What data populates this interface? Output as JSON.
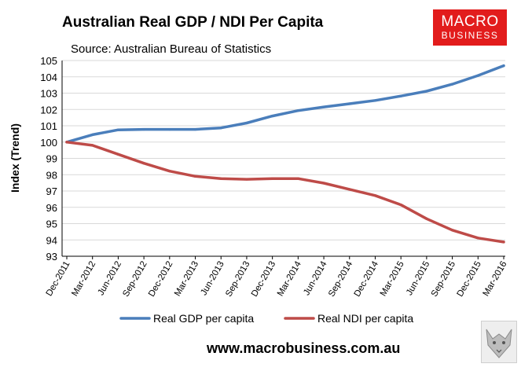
{
  "header": {
    "title": "Australian Real GDP / NDI Per Capita",
    "source": "Source: Australian Bureau of Statistics"
  },
  "logo": {
    "line1": "MACRO",
    "line2": "BUSINESS",
    "bg_color": "#e21c1c"
  },
  "footer": {
    "url": "www.macrobusiness.com.au",
    "icon": "wolf-logo-icon"
  },
  "chart_data": {
    "type": "line",
    "title": "Australian Real GDP / NDI Per Capita",
    "subtitle": "Source: Australian Bureau of Statistics",
    "xlabel": "",
    "ylabel": "Index (Trend)",
    "ylim": [
      93,
      105
    ],
    "yticks": [
      93,
      94,
      95,
      96,
      97,
      98,
      99,
      100,
      101,
      102,
      103,
      104,
      105
    ],
    "grid": true,
    "legend": "bottom",
    "categories": [
      "Dec-2011",
      "Mar-2012",
      "Jun-2012",
      "Sep-2012",
      "Dec-2012",
      "Mar-2013",
      "Jun-2013",
      "Sep-2013",
      "Dec-2013",
      "Mar-2014",
      "Jun-2014",
      "Sep-2014",
      "Dec-2014",
      "Mar-2015",
      "Jun-2015",
      "Sep-2015",
      "Dec-2015",
      "Mar-2016"
    ],
    "series": [
      {
        "name": "Real GDP per capita",
        "color": "#4a7ebb",
        "values": [
          100.0,
          100.45,
          100.75,
          100.78,
          100.78,
          100.78,
          100.87,
          101.17,
          101.6,
          101.93,
          102.15,
          102.35,
          102.55,
          102.82,
          103.12,
          103.55,
          104.08,
          104.68
        ]
      },
      {
        "name": "Real NDI per capita",
        "color": "#be4b48",
        "values": [
          100.0,
          99.8,
          99.25,
          98.7,
          98.22,
          97.9,
          97.76,
          97.72,
          97.76,
          97.76,
          97.48,
          97.1,
          96.72,
          96.15,
          95.3,
          94.6,
          94.12,
          93.87
        ]
      }
    ]
  }
}
